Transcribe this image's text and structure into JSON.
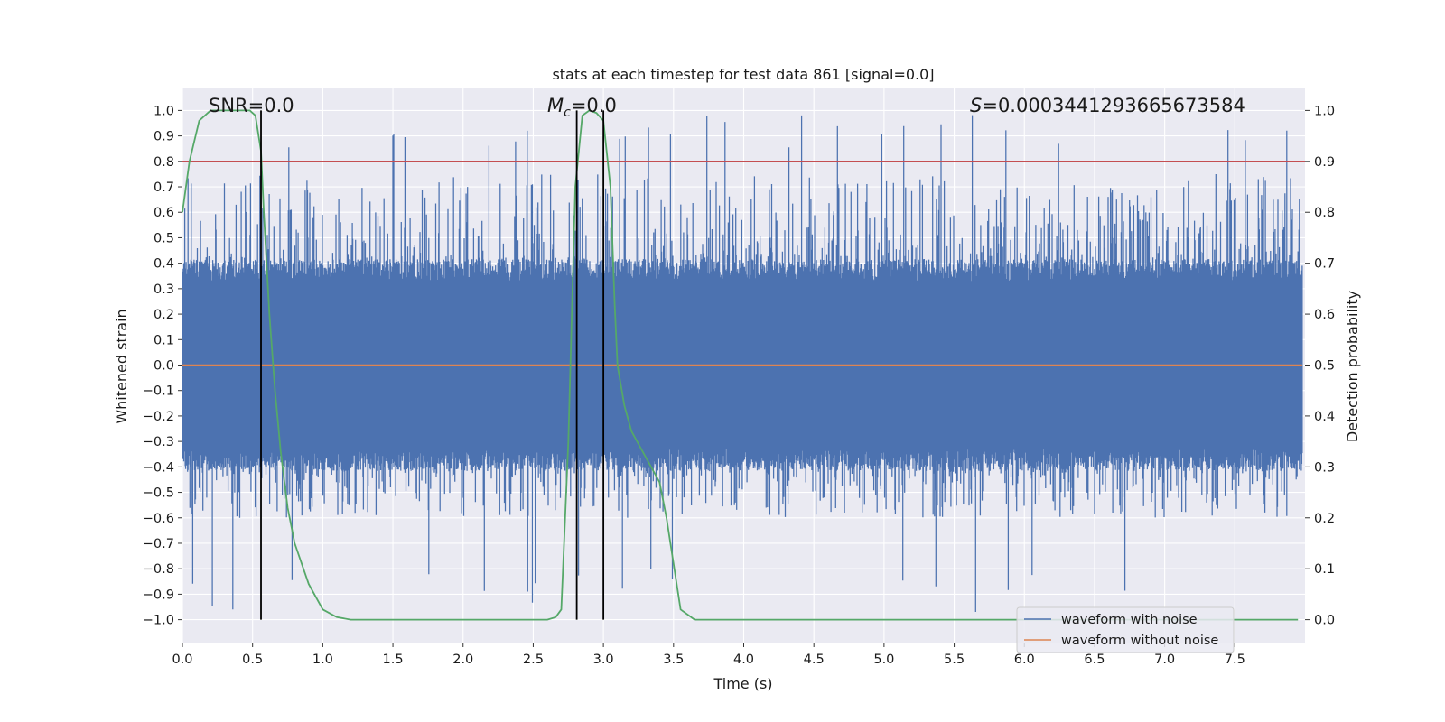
{
  "chart_data": {
    "type": "line",
    "title": "stats at each timestep for test data 861 [signal=0.0]",
    "xlabel": "Time (s)",
    "ylabel_left": "Whitened strain",
    "ylabel_right": "Detection probability",
    "xlim": [
      0.0,
      8.0
    ],
    "ylim_left": [
      -1.09,
      1.09
    ],
    "ylim_right": [
      -0.045,
      1.045
    ],
    "grid": true,
    "x_ticks": [
      "0.0",
      "0.5",
      "1.0",
      "1.5",
      "2.0",
      "2.5",
      "3.0",
      "3.5",
      "4.0",
      "4.5",
      "5.0",
      "5.5",
      "6.0",
      "6.5",
      "7.0",
      "7.5"
    ],
    "y_left_ticks": [
      "1.0",
      "0.9",
      "0.8",
      "0.7",
      "0.6",
      "0.5",
      "0.4",
      "0.3",
      "0.2",
      "0.1",
      "0.0",
      "−0.1",
      "−0.2",
      "−0.3",
      "−0.4",
      "−0.5",
      "−0.6",
      "−0.7",
      "−0.8",
      "−0.9",
      "−1.0"
    ],
    "y_right_ticks": [
      "1.0",
      "0.9",
      "0.8",
      "0.7",
      "0.6",
      "0.5",
      "0.4",
      "0.3",
      "0.2",
      "0.1",
      "0.0"
    ],
    "annotations": {
      "snr": "SNR=0.0",
      "mc_symbol": "M",
      "mc_subscript": "c",
      "mc_value": "=0.0",
      "s_symbol": "S",
      "s_value": "=0.0003441293665673584"
    },
    "threshold_line": {
      "axis": "right",
      "value": 0.9,
      "color": "#c44e52"
    },
    "vertical_lines": [
      0.56,
      2.81,
      3.0
    ],
    "series": [
      {
        "name": "waveform with noise",
        "color": "#4c72b0",
        "axis": "left",
        "typical_amplitude": 0.4,
        "peak_amplitude": 1.0
      },
      {
        "name": "waveform without noise",
        "color": "#dd8452",
        "axis": "left",
        "values": "0.0 everywhere"
      },
      {
        "name": "detection probability",
        "color": "#55a868",
        "axis": "right",
        "x": [
          0.0,
          0.05,
          0.12,
          0.2,
          0.3,
          0.4,
          0.48,
          0.52,
          0.56,
          0.58,
          0.62,
          0.66,
          0.7,
          0.75,
          0.8,
          0.9,
          1.0,
          1.1,
          1.2,
          1.5,
          2.0,
          2.5,
          2.6,
          2.66,
          2.7,
          2.75,
          2.8,
          2.85,
          2.9,
          2.95,
          3.0,
          3.05,
          3.08,
          3.1,
          3.15,
          3.2,
          3.3,
          3.4,
          3.45,
          3.55,
          3.65,
          4.0,
          5.0,
          6.0,
          7.0,
          7.95
        ],
        "y": [
          0.8,
          0.9,
          0.98,
          1.0,
          1.0,
          1.0,
          1.0,
          0.99,
          0.92,
          0.8,
          0.6,
          0.45,
          0.33,
          0.22,
          0.15,
          0.07,
          0.02,
          0.005,
          0.0,
          0.0,
          0.0,
          0.0,
          0.0,
          0.005,
          0.02,
          0.35,
          0.85,
          0.99,
          1.0,
          0.995,
          0.98,
          0.85,
          0.62,
          0.5,
          0.42,
          0.37,
          0.32,
          0.27,
          0.2,
          0.02,
          0.0,
          0.0,
          0.0,
          0.0,
          0.0,
          0.0
        ]
      }
    ],
    "legend": {
      "position": "bottom-right",
      "entries": [
        {
          "label": "waveform with noise",
          "color": "#4c72b0"
        },
        {
          "label": "waveform without noise",
          "color": "#dd8452"
        }
      ]
    },
    "colors": {
      "background": "#eaeaf2",
      "grid": "#ffffff",
      "vline": "#000000"
    }
  }
}
